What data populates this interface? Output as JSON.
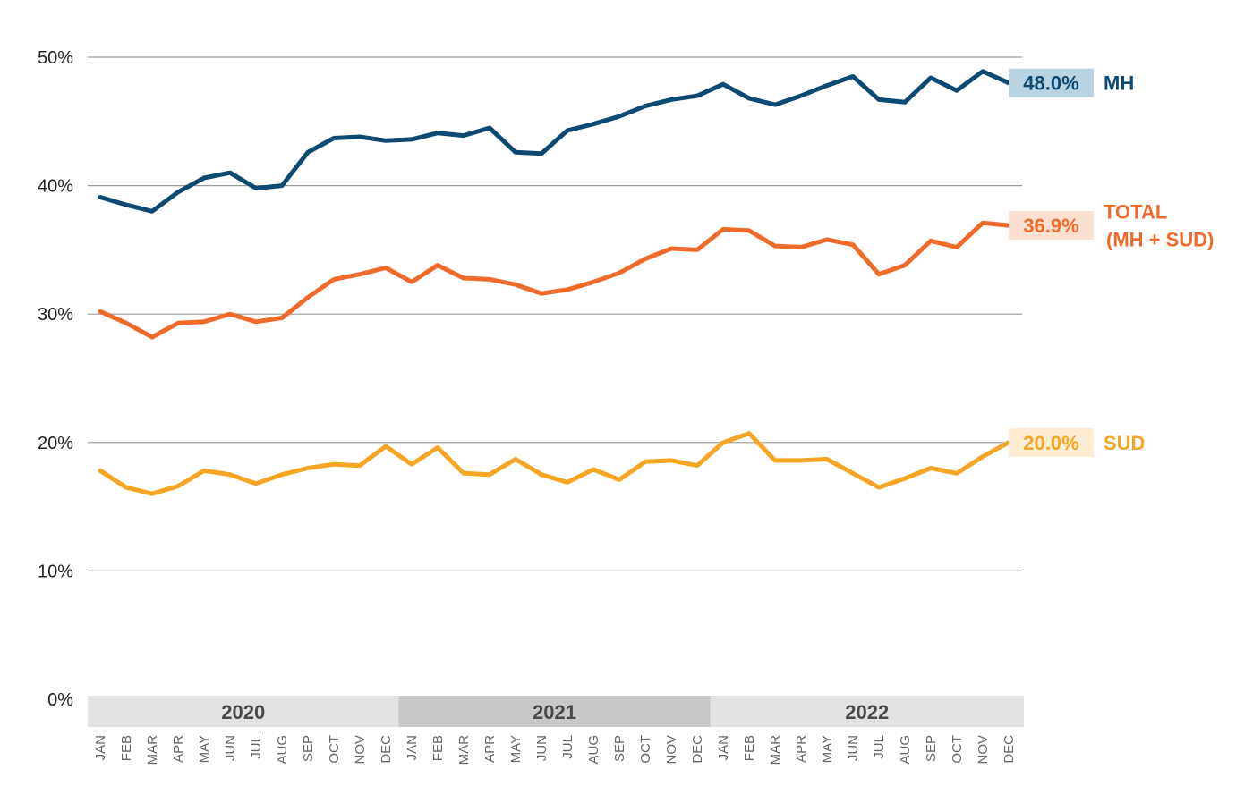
{
  "chart_data": {
    "type": "line",
    "ylim": [
      0,
      50
    ],
    "yticks": [
      0,
      10,
      20,
      30,
      40,
      50
    ],
    "ytick_labels": [
      "0%",
      "10%",
      "20%",
      "30%",
      "40%",
      "50%"
    ],
    "grid": true,
    "x": [
      "JAN",
      "FEB",
      "MAR",
      "APR",
      "MAY",
      "JUN",
      "JUL",
      "AUG",
      "SEP",
      "OCT",
      "NOV",
      "DEC",
      "JAN",
      "FEB",
      "MAR",
      "APR",
      "MAY",
      "JUN",
      "JUL",
      "AUG",
      "SEP",
      "OCT",
      "NOV",
      "DEC",
      "JAN",
      "FEB",
      "MAR",
      "APR",
      "MAY",
      "JUN",
      "JUL",
      "AUG",
      "SEP",
      "OCT",
      "NOV",
      "DEC"
    ],
    "year_groups": [
      {
        "label": "2020",
        "months": 12,
        "shade": "#e2e2e2"
      },
      {
        "label": "2021",
        "months": 12,
        "shade": "#c8c8c8"
      },
      {
        "label": "2022",
        "months": 12,
        "shade": "#e2e2e2"
      }
    ],
    "series": [
      {
        "name": "MH",
        "color": "#0d4a73",
        "label_color": "#0d4a73",
        "end_bg": "#b9d3e0",
        "end_text_color": "#0d4a73",
        "end_label": "48.0%",
        "values": [
          39.1,
          38.5,
          38.0,
          39.5,
          40.6,
          41.0,
          39.8,
          40.0,
          42.6,
          43.7,
          43.8,
          43.5,
          43.6,
          44.1,
          43.9,
          44.5,
          42.6,
          42.5,
          44.3,
          44.8,
          45.4,
          46.2,
          46.7,
          47.0,
          47.9,
          46.8,
          46.3,
          47.0,
          47.8,
          48.5,
          46.7,
          46.5,
          48.4,
          47.4,
          48.9,
          48.0
        ]
      },
      {
        "name": "TOTAL (MH + SUD)",
        "name_lines": [
          "TOTAL",
          "(MH + SUD)"
        ],
        "color": "#f06a2a",
        "label_color": "#f06a2a",
        "end_bg": "#fbe1d1",
        "end_text_color": "#f06a2a",
        "end_label": "36.9%",
        "values": [
          30.2,
          29.3,
          28.2,
          29.3,
          29.4,
          30.0,
          29.4,
          29.7,
          31.3,
          32.7,
          33.1,
          33.6,
          32.5,
          33.8,
          32.8,
          32.7,
          32.3,
          31.6,
          31.9,
          32.5,
          33.2,
          34.3,
          35.1,
          35.0,
          36.6,
          36.5,
          35.3,
          35.2,
          35.8,
          35.4,
          33.1,
          33.8,
          35.7,
          35.2,
          37.1,
          36.9
        ]
      },
      {
        "name": "SUD",
        "color": "#f6a623",
        "label_color": "#f6a623",
        "end_bg": "#fdebd3",
        "end_text_color": "#f6a623",
        "end_label": "20.0%",
        "values": [
          17.8,
          16.5,
          16.0,
          16.6,
          17.8,
          17.5,
          16.8,
          17.5,
          18.0,
          18.3,
          18.2,
          19.7,
          18.3,
          19.6,
          17.6,
          17.5,
          18.7,
          17.5,
          16.9,
          17.9,
          17.1,
          18.5,
          18.6,
          18.2,
          20.0,
          20.7,
          18.6,
          18.6,
          18.7,
          17.6,
          16.5,
          17.2,
          18.0,
          17.6,
          18.9,
          20.0
        ]
      }
    ]
  }
}
